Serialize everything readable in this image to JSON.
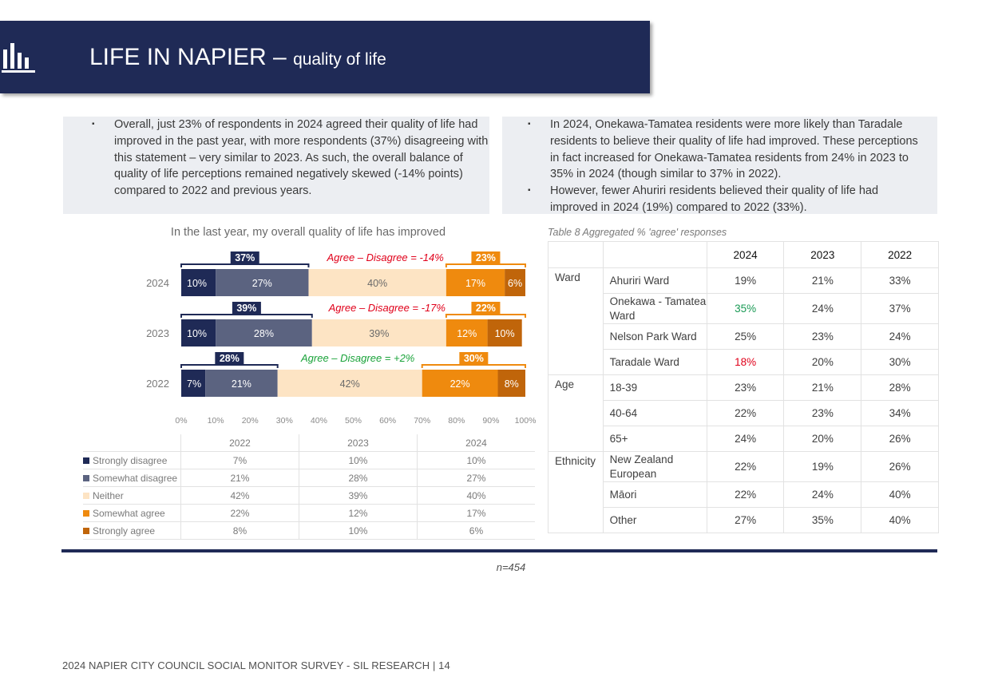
{
  "header": {
    "title": "LIFE IN NAPIER – ",
    "subtitle": "quality of life",
    "icon": "bar-chart-icon"
  },
  "bullets_left": [
    "Overall, just 23% of respondents in 2024 agreed their quality of life had improved in the past year, with more respondents (37%) disagreeing with this statement – very similar to 2023. As such, the overall balance of quality of life perceptions remained negatively skewed (-14% points) compared to 2022 and previous years."
  ],
  "bullets_right": [
    "In 2024, Onekawa-Tamatea residents were more likely than Taradale residents to believe their quality of life had improved. These perceptions in fact increased for Onekawa-Tamatea residents from 24% in 2023 to 35% in 2024 (though similar to 37% in 2022).",
    "However, fewer Ahuriri residents believed their quality of life had improved in 2024 (19%) compared to 2022 (33%)."
  ],
  "chart_data": {
    "type": "bar",
    "orientation": "horizontal-stacked-100",
    "title": "In the last year, my overall quality of life has improved",
    "categories": [
      "2024",
      "2023",
      "2022"
    ],
    "series": [
      {
        "name": "Strongly disagree",
        "color": "#1f2a56",
        "values": [
          10,
          10,
          7
        ]
      },
      {
        "name": "Somewhat disagree",
        "color": "#5b6380",
        "values": [
          27,
          28,
          21
        ]
      },
      {
        "name": "Neither",
        "color": "#fde4c4",
        "values": [
          40,
          39,
          42
        ]
      },
      {
        "name": "Somewhat agree",
        "color": "#ef8a0e",
        "values": [
          17,
          12,
          22
        ]
      },
      {
        "name": "Strongly agree",
        "color": "#c0650a",
        "values": [
          6,
          10,
          8
        ]
      }
    ],
    "disagree_totals": [
      "37%",
      "39%",
      "28%"
    ],
    "agree_totals": [
      "23%",
      "22%",
      "30%"
    ],
    "balance_labels": [
      {
        "text": "Agree – Disagree = -14%",
        "color": "#e0001a"
      },
      {
        "text": "Agree – Disagree = -17%",
        "color": "#e0001a"
      },
      {
        "text": "Agree – Disagree = +2%",
        "color": "#1aa33a"
      }
    ],
    "x_ticks": [
      "0%",
      "10%",
      "20%",
      "30%",
      "40%",
      "50%",
      "60%",
      "70%",
      "80%",
      "90%",
      "100%"
    ],
    "xlim": [
      0,
      100
    ]
  },
  "legend_table": {
    "years": [
      "2022",
      "2023",
      "2024"
    ],
    "rows": [
      {
        "label": "Strongly disagree",
        "color": "#1f2a56",
        "values": [
          "7%",
          "10%",
          "10%"
        ]
      },
      {
        "label": "Somewhat disagree",
        "color": "#5b6380",
        "values": [
          "21%",
          "28%",
          "27%"
        ]
      },
      {
        "label": "Neither",
        "color": "#fde4c4",
        "values": [
          "42%",
          "39%",
          "40%"
        ]
      },
      {
        "label": "Somewhat agree",
        "color": "#ef8a0e",
        "values": [
          "22%",
          "12%",
          "17%"
        ]
      },
      {
        "label": "Strongly agree",
        "color": "#c0650a",
        "values": [
          "8%",
          "10%",
          "6%"
        ]
      }
    ]
  },
  "agg_table": {
    "caption": "Table 8 Aggregated % 'agree' responses",
    "years": [
      "2024",
      "2023",
      "2022"
    ],
    "groups": [
      {
        "name": "Ward",
        "rows": [
          {
            "label": "Ahuriri Ward",
            "values": [
              "19%",
              "21%",
              "33%"
            ],
            "highlight": ""
          },
          {
            "label": "Onekawa - Tamatea Ward",
            "values": [
              "35%",
              "24%",
              "37%"
            ],
            "highlight": "green"
          },
          {
            "label": "Nelson Park Ward",
            "values": [
              "25%",
              "23%",
              "24%"
            ],
            "highlight": ""
          },
          {
            "label": "Taradale Ward",
            "values": [
              "18%",
              "20%",
              "30%"
            ],
            "highlight": "red"
          }
        ]
      },
      {
        "name": "Age",
        "rows": [
          {
            "label": "18-39",
            "values": [
              "23%",
              "21%",
              "28%"
            ],
            "highlight": ""
          },
          {
            "label": "40-64",
            "values": [
              "22%",
              "23%",
              "34%"
            ],
            "highlight": ""
          },
          {
            "label": "65+",
            "values": [
              "24%",
              "20%",
              "26%"
            ],
            "highlight": ""
          }
        ]
      },
      {
        "name": "Ethnicity",
        "rows": [
          {
            "label": "New Zealand European",
            "values": [
              "22%",
              "19%",
              "26%"
            ],
            "highlight": ""
          },
          {
            "label": "Māori",
            "values": [
              "22%",
              "24%",
              "40%"
            ],
            "highlight": ""
          },
          {
            "label": "Other",
            "values": [
              "27%",
              "35%",
              "40%"
            ],
            "highlight": ""
          }
        ]
      }
    ],
    "highlight_colors": {
      "green": "#1a9a55",
      "red": "#e0001a"
    }
  },
  "sample_size": "n=454",
  "footer": "2024 NAPIER CITY COUNCIL SOCIAL MONITOR SURVEY - SIL RESEARCH | 14"
}
